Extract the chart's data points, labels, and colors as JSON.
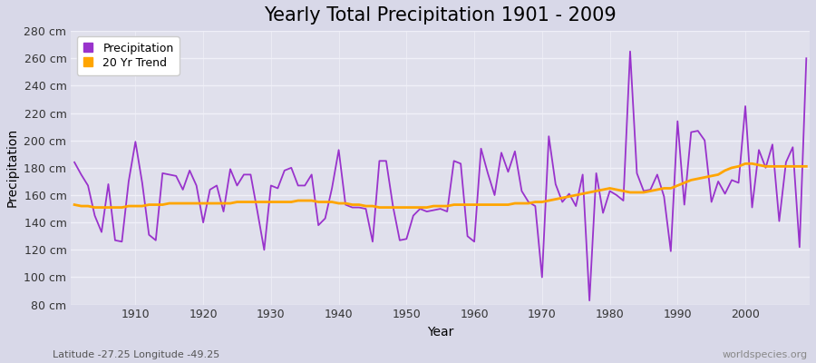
{
  "title": "Yearly Total Precipitation 1901 - 2009",
  "xlabel": "Year",
  "ylabel": "Precipitation",
  "subtitle": "Latitude -27.25 Longitude -49.25",
  "watermark": "worldspecies.org",
  "years": [
    1901,
    1902,
    1903,
    1904,
    1905,
    1906,
    1907,
    1908,
    1909,
    1910,
    1911,
    1912,
    1913,
    1914,
    1915,
    1916,
    1917,
    1918,
    1919,
    1920,
    1921,
    1922,
    1923,
    1924,
    1925,
    1926,
    1927,
    1928,
    1929,
    1930,
    1931,
    1932,
    1933,
    1934,
    1935,
    1936,
    1937,
    1938,
    1939,
    1940,
    1941,
    1942,
    1943,
    1944,
    1945,
    1946,
    1947,
    1948,
    1949,
    1950,
    1951,
    1952,
    1953,
    1954,
    1955,
    1956,
    1957,
    1958,
    1959,
    1960,
    1961,
    1962,
    1963,
    1964,
    1965,
    1966,
    1967,
    1968,
    1969,
    1970,
    1971,
    1972,
    1973,
    1974,
    1975,
    1976,
    1977,
    1978,
    1979,
    1980,
    1981,
    1982,
    1983,
    1984,
    1985,
    1986,
    1987,
    1988,
    1989,
    1990,
    1991,
    1992,
    1993,
    1994,
    1995,
    1996,
    1997,
    1998,
    1999,
    2000,
    2001,
    2002,
    2003,
    2004,
    2005,
    2006,
    2007,
    2008,
    2009
  ],
  "precipitation": [
    184,
    175,
    167,
    145,
    133,
    168,
    127,
    126,
    170,
    199,
    169,
    131,
    127,
    176,
    175,
    174,
    164,
    178,
    167,
    140,
    164,
    167,
    148,
    179,
    167,
    175,
    175,
    148,
    120,
    167,
    165,
    178,
    180,
    167,
    167,
    175,
    138,
    143,
    165,
    193,
    153,
    151,
    151,
    150,
    126,
    185,
    185,
    152,
    127,
    128,
    145,
    150,
    148,
    149,
    150,
    148,
    185,
    183,
    130,
    126,
    194,
    176,
    160,
    191,
    177,
    192,
    163,
    155,
    152,
    100,
    203,
    168,
    155,
    161,
    152,
    175,
    83,
    176,
    147,
    163,
    160,
    156,
    265,
    176,
    163,
    164,
    175,
    159,
    119,
    214,
    153,
    206,
    207,
    200,
    155,
    170,
    161,
    171,
    169,
    225,
    151,
    193,
    180,
    197,
    141,
    184,
    195,
    122,
    260
  ],
  "trend": [
    153,
    152,
    152,
    151,
    151,
    151,
    151,
    151,
    152,
    152,
    152,
    153,
    153,
    153,
    154,
    154,
    154,
    154,
    154,
    154,
    154,
    154,
    154,
    154,
    155,
    155,
    155,
    155,
    155,
    155,
    155,
    155,
    155,
    156,
    156,
    156,
    155,
    155,
    155,
    154,
    154,
    153,
    153,
    152,
    152,
    151,
    151,
    151,
    151,
    151,
    151,
    151,
    151,
    152,
    152,
    152,
    153,
    153,
    153,
    153,
    153,
    153,
    153,
    153,
    153,
    154,
    154,
    154,
    155,
    155,
    156,
    157,
    158,
    159,
    160,
    161,
    162,
    163,
    164,
    165,
    164,
    163,
    162,
    162,
    162,
    163,
    164,
    165,
    165,
    167,
    169,
    171,
    172,
    173,
    174,
    175,
    178,
    180,
    181,
    183,
    183,
    182,
    181,
    181,
    181,
    181,
    181,
    181,
    181
  ],
  "precip_color": "#9933CC",
  "trend_color": "#FFA500",
  "bg_outer": "#D8D8E8",
  "bg_plot": "#E0E0EC",
  "grid_color": "#F0F0F8",
  "ylim": [
    80,
    280
  ],
  "yticks": [
    80,
    100,
    120,
    140,
    160,
    180,
    200,
    220,
    240,
    260,
    280
  ],
  "xticks": [
    1910,
    1920,
    1930,
    1940,
    1950,
    1960,
    1970,
    1980,
    1990,
    2000
  ],
  "title_fontsize": 15,
  "axis_label_fontsize": 10,
  "tick_fontsize": 9,
  "legend_fontsize": 9
}
